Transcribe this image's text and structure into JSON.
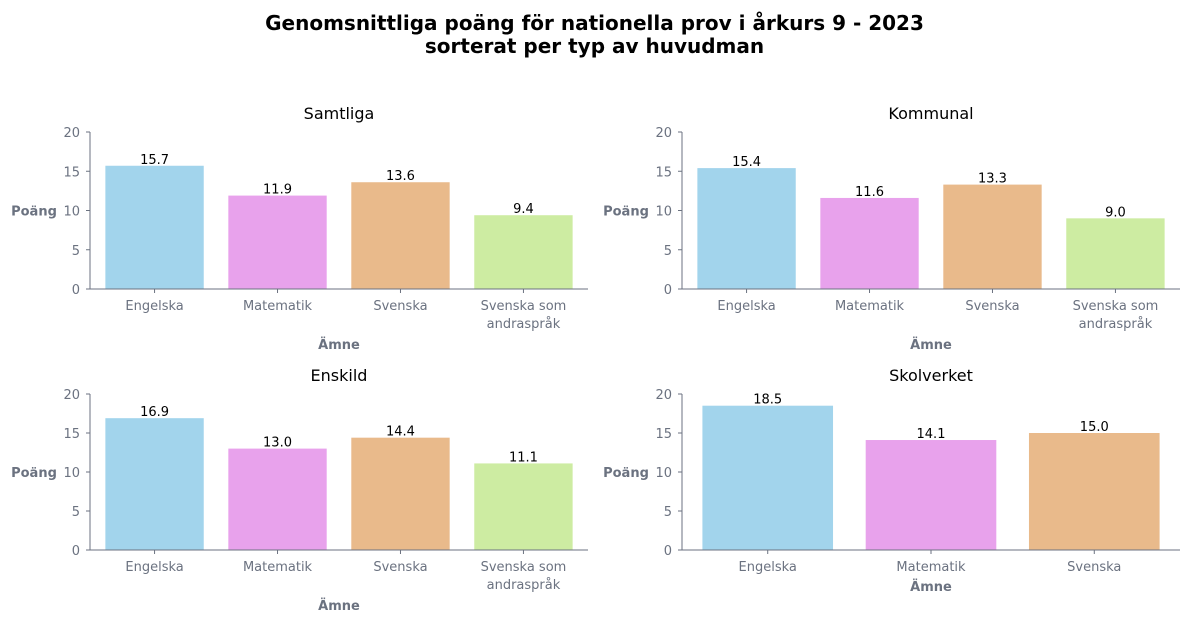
{
  "title_line1": "Genomsnittliga poäng för nationella prov i årkurs 9 - 2023",
  "title_line2": "sorterat per typ av huvudman",
  "colors": {
    "Engelska": "#a2d4ec",
    "Matematik": "#e8a2ec",
    "Svenska": "#e9ba8b",
    "Svenska som andraspråk": "#cdeca2",
    "axis": "#6b7280"
  },
  "chart_data": [
    {
      "type": "bar",
      "title": "Samtliga",
      "xlabel": "Ämne",
      "ylabel": "Poäng",
      "ylim": [
        0,
        20
      ],
      "yticks": [
        0,
        5,
        10,
        15,
        20
      ],
      "categories": [
        "Engelska",
        "Matematik",
        "Svenska",
        "Svenska som andraspråk"
      ],
      "values": [
        15.7,
        11.9,
        13.6,
        9.4
      ],
      "value_labels": [
        "15.7",
        "11.9",
        "13.6",
        "9.4"
      ],
      "grid": false
    },
    {
      "type": "bar",
      "title": "Kommunal",
      "xlabel": "Ämne",
      "ylabel": "Poäng",
      "ylim": [
        0,
        20
      ],
      "yticks": [
        0,
        5,
        10,
        15,
        20
      ],
      "categories": [
        "Engelska",
        "Matematik",
        "Svenska",
        "Svenska som andraspråk"
      ],
      "values": [
        15.4,
        11.6,
        13.3,
        9.0
      ],
      "value_labels": [
        "15.4",
        "11.6",
        "13.3",
        "9.0"
      ],
      "grid": false
    },
    {
      "type": "bar",
      "title": "Enskild",
      "xlabel": "Ämne",
      "ylabel": "Poäng",
      "ylim": [
        0,
        20
      ],
      "yticks": [
        0,
        5,
        10,
        15,
        20
      ],
      "categories": [
        "Engelska",
        "Matematik",
        "Svenska",
        "Svenska som andraspråk"
      ],
      "values": [
        16.9,
        13.0,
        14.4,
        11.1
      ],
      "value_labels": [
        "16.9",
        "13.0",
        "14.4",
        "11.1"
      ],
      "grid": false
    },
    {
      "type": "bar",
      "title": "Skolverket",
      "xlabel": "Ämne",
      "ylabel": "Poäng",
      "ylim": [
        0,
        20
      ],
      "yticks": [
        0,
        5,
        10,
        15,
        20
      ],
      "categories": [
        "Engelska",
        "Matematik",
        "Svenska"
      ],
      "values": [
        18.5,
        14.1,
        15.0
      ],
      "value_labels": [
        "18.5",
        "14.1",
        "15.0"
      ],
      "grid": false
    }
  ]
}
